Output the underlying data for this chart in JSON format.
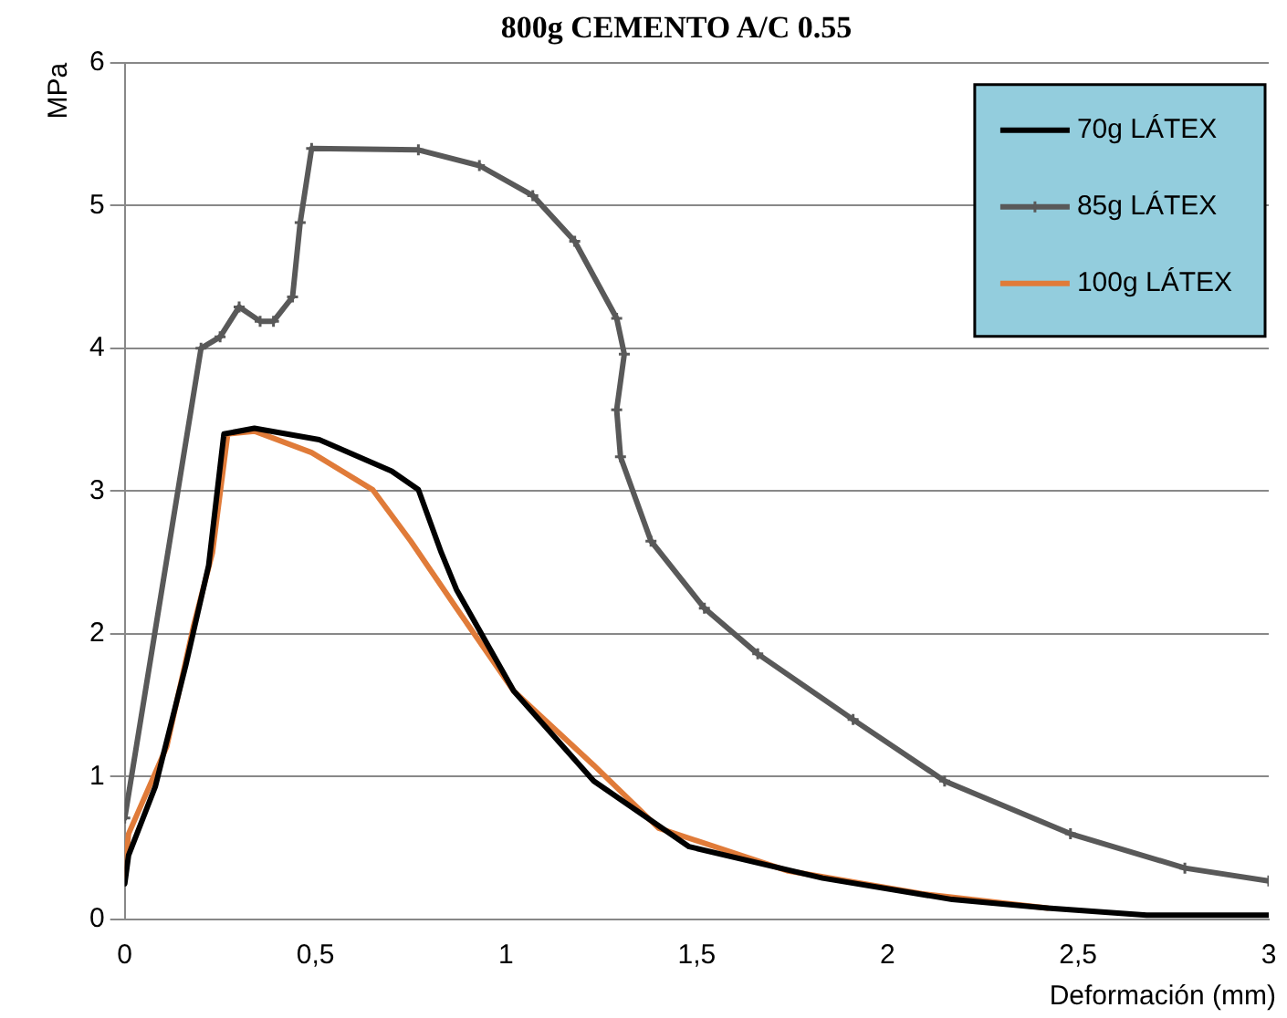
{
  "chart_data": {
    "type": "line",
    "title": "800g CEMENTO A/C 0.55",
    "xlabel": "Deformación (mm)",
    "ylabel": "MPa",
    "xlim": [
      0,
      3
    ],
    "xticks": [
      0,
      {
        "value": 0.5,
        "label": "0,5"
      },
      1,
      {
        "value": 1.5,
        "label": "1,5"
      },
      2,
      {
        "value": 2.5,
        "label": "2,5"
      },
      3
    ],
    "ylim": [
      0,
      6
    ],
    "yticks": [
      0,
      1,
      2,
      3,
      4,
      5,
      6
    ],
    "grid": "y",
    "legend": "top right",
    "line_style": "solid",
    "series": [
      {
        "name": "70g LÁTEX",
        "color": "#000000",
        "marker": "none",
        "x": [
          0,
          0.01,
          0.08,
          0.16,
          0.22,
          0.26,
          0.34,
          0.51,
          0.7,
          0.77,
          0.83,
          0.87,
          1.02,
          1.23,
          1.48,
          1.83,
          2.17,
          2.42,
          2.68,
          3
        ],
        "values": [
          0.25,
          0.45,
          0.93,
          1.78,
          2.48,
          3.4,
          3.44,
          3.36,
          3.14,
          3.01,
          2.57,
          2.31,
          1.6,
          0.97,
          0.51,
          0.29,
          0.14,
          0.08,
          0.03,
          0.03
        ]
      },
      {
        "name": "85g LÁTEX",
        "color": "#595959",
        "marker": "cross",
        "x": [
          0,
          0.2,
          0.25,
          0.3,
          0.355,
          0.39,
          0.44,
          0.46,
          0.49,
          0.77,
          0.93,
          1.07,
          1.18,
          1.29,
          1.31,
          1.29,
          1.3,
          1.38,
          1.52,
          1.66,
          1.91,
          2.15,
          2.48,
          2.78,
          3
        ],
        "values": [
          0.71,
          4.0,
          4.08,
          4.29,
          4.19,
          4.19,
          4.36,
          4.88,
          5.4,
          5.39,
          5.28,
          5.07,
          4.75,
          4.21,
          3.96,
          3.57,
          3.24,
          2.65,
          2.18,
          1.86,
          1.4,
          0.97,
          0.6,
          0.36,
          0.27
        ]
      },
      {
        "name": "100g LÁTEX",
        "color": "#e07b39",
        "marker": "none",
        "x": [
          0,
          0.01,
          0.11,
          0.18,
          0.23,
          0.27,
          0.34,
          0.49,
          0.65,
          0.75,
          0.87,
          1.02,
          1.23,
          1.4,
          1.74,
          2.09,
          2.42
        ],
        "values": [
          0.31,
          0.6,
          1.21,
          2.05,
          2.57,
          3.4,
          3.42,
          3.27,
          3.01,
          2.65,
          2.18,
          1.6,
          1.08,
          0.64,
          0.34,
          0.18,
          0.08
        ]
      }
    ]
  }
}
